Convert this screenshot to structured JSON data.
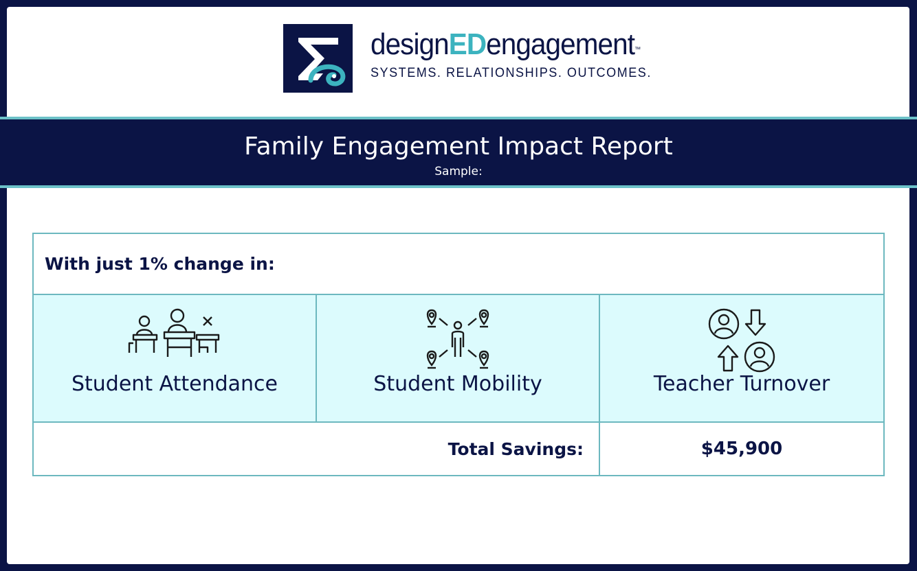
{
  "logo": {
    "brand_prefix": "design",
    "brand_highlight": "ED",
    "brand_suffix": "engagement",
    "trademark": "™",
    "tagline": "SYSTEMS. RELATIONSHIPS. OUTCOMES."
  },
  "banner": {
    "title": "Family Engagement Impact Report",
    "subtitle": "Sample:"
  },
  "table": {
    "intro": "With just 1% change in:",
    "metrics": [
      {
        "label": "Student Attendance",
        "icon": "student-desks-icon"
      },
      {
        "label": "Student Mobility",
        "icon": "location-network-icon"
      },
      {
        "label": "Teacher Turnover",
        "icon": "user-swap-icon"
      }
    ],
    "total_label": "Total Savings:",
    "total_value": "$45,900"
  },
  "colors": {
    "navy": "#0b1445",
    "teal": "#3cb3bf",
    "cell_bg": "#dcfbfd",
    "border": "#6cb8bf"
  }
}
